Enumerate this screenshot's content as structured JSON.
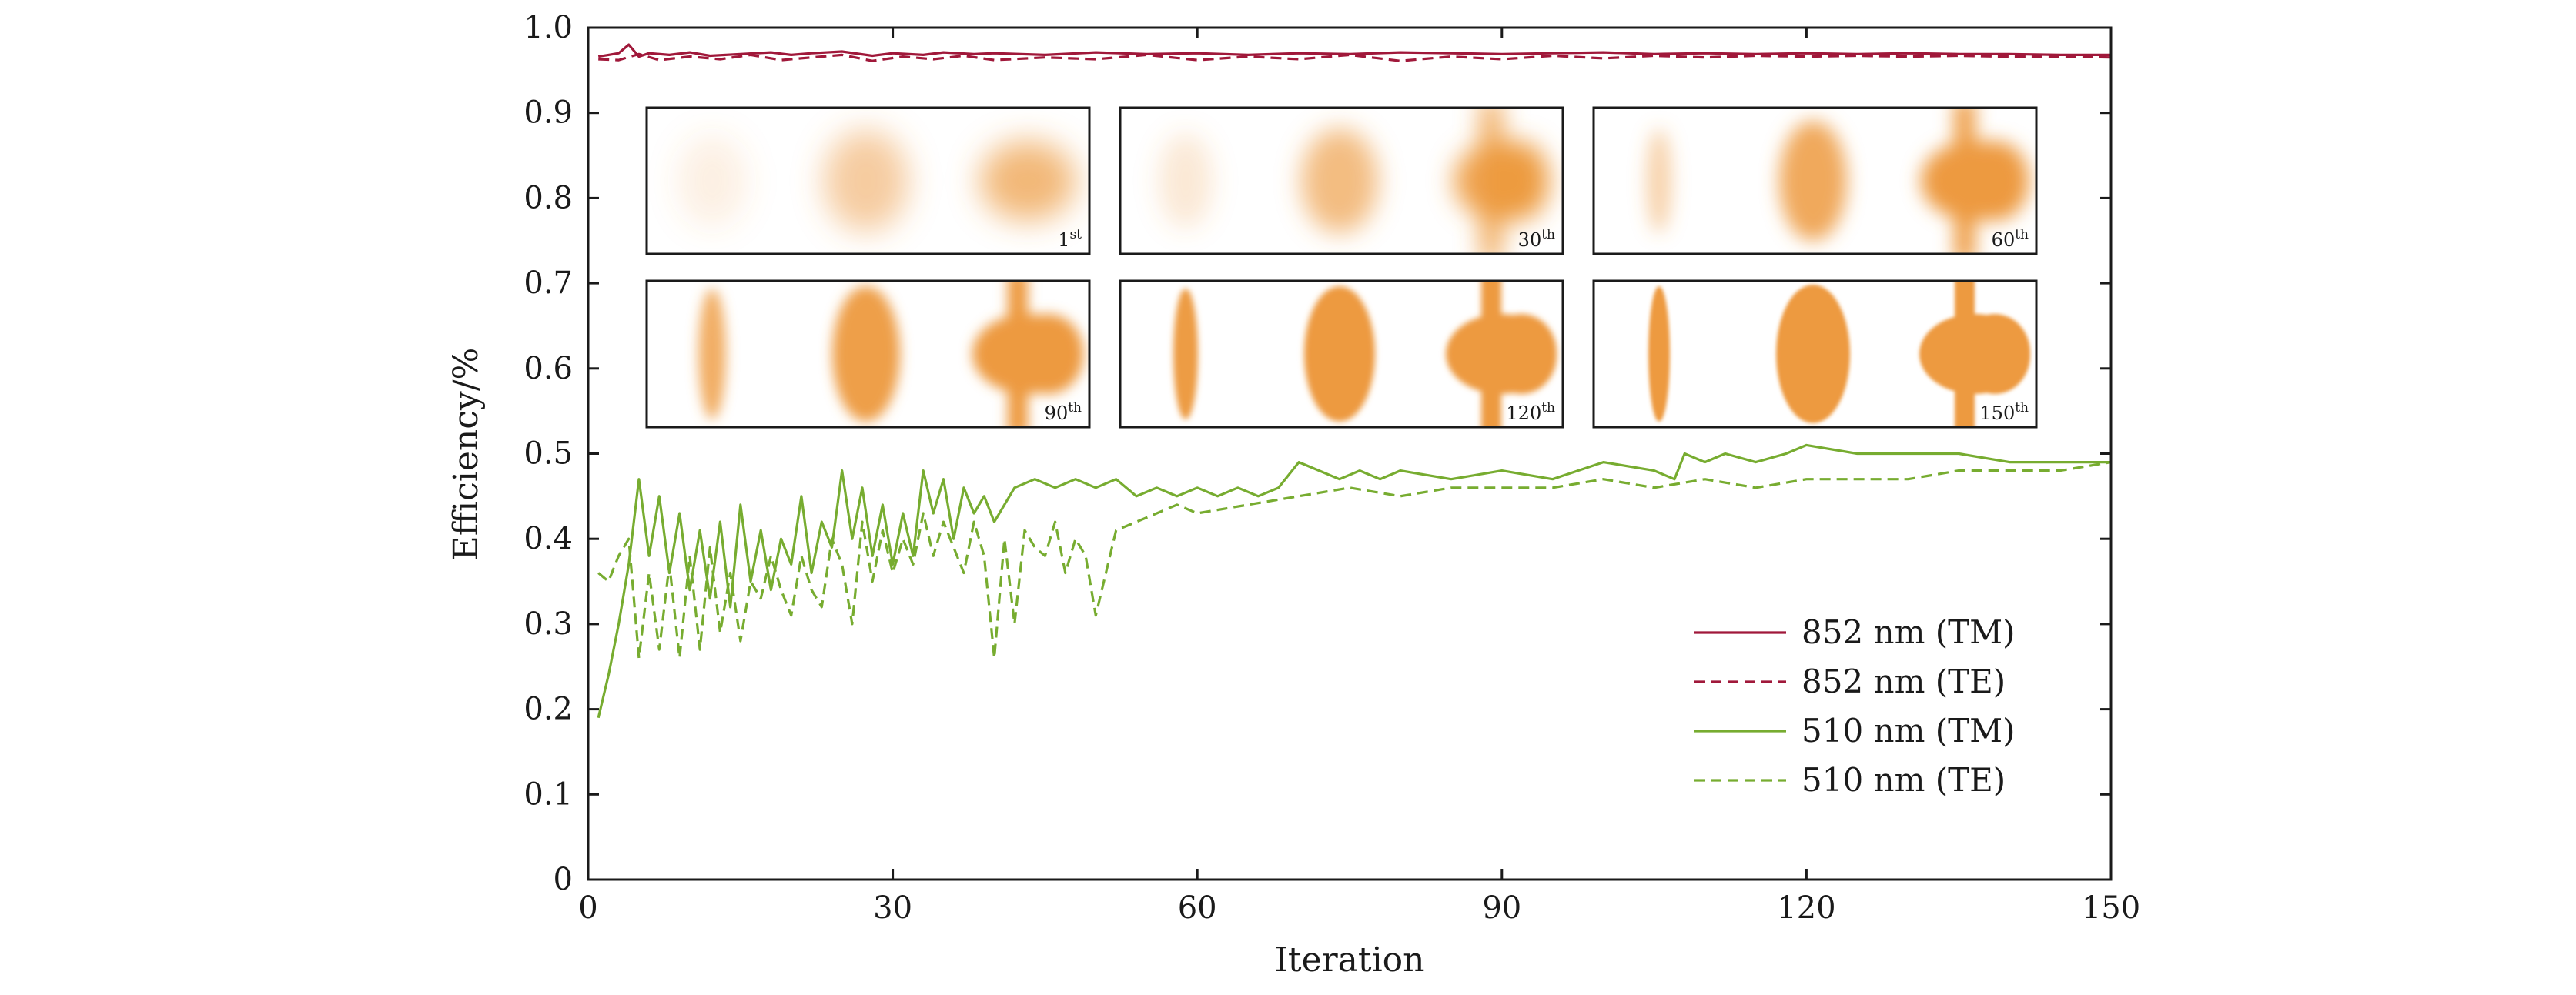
{
  "chart_data": {
    "type": "line",
    "xlabel": "Iteration",
    "ylabel": "Efficiency/%",
    "xlim": [
      0,
      150
    ],
    "ylim": [
      0,
      1.0
    ],
    "xticks": [
      0,
      30,
      60,
      90,
      120,
      150
    ],
    "yticks": [
      0,
      0.1,
      0.2,
      0.3,
      0.4,
      0.5,
      0.6,
      0.7,
      0.8,
      0.9,
      1.0
    ],
    "xtick_labels": [
      "0",
      "30",
      "60",
      "90",
      "120",
      "150"
    ],
    "ytick_labels": [
      "0",
      "0.1",
      "0.2",
      "0.3",
      "0.4",
      "0.5",
      "0.6",
      "0.7",
      "0.8",
      "0.9",
      "1.0"
    ],
    "grid": false,
    "legend_position": "lower-right",
    "series": [
      {
        "name": "852 nm (TM)",
        "color": "#a0183a",
        "dash": "solid",
        "x": [
          1,
          2,
          3,
          4,
          5,
          6,
          8,
          10,
          12,
          15,
          18,
          20,
          22,
          25,
          28,
          30,
          33,
          35,
          38,
          40,
          45,
          50,
          55,
          60,
          65,
          70,
          75,
          80,
          85,
          90,
          95,
          100,
          105,
          110,
          115,
          120,
          125,
          130,
          135,
          140,
          145,
          150
        ],
        "values": [
          0.966,
          0.968,
          0.97,
          0.98,
          0.966,
          0.97,
          0.968,
          0.971,
          0.967,
          0.969,
          0.971,
          0.968,
          0.97,
          0.972,
          0.967,
          0.97,
          0.968,
          0.971,
          0.969,
          0.97,
          0.968,
          0.971,
          0.969,
          0.97,
          0.968,
          0.97,
          0.969,
          0.971,
          0.97,
          0.969,
          0.97,
          0.971,
          0.969,
          0.97,
          0.969,
          0.97,
          0.969,
          0.97,
          0.969,
          0.969,
          0.968,
          0.968
        ]
      },
      {
        "name": "852 nm (TE)",
        "color": "#a0183a",
        "dash": "dashed",
        "x": [
          1,
          3,
          5,
          7,
          10,
          13,
          16,
          19,
          22,
          25,
          28,
          31,
          34,
          37,
          40,
          45,
          50,
          55,
          60,
          65,
          70,
          75,
          80,
          85,
          90,
          95,
          100,
          105,
          110,
          115,
          120,
          125,
          130,
          135,
          140,
          145,
          150
        ],
        "values": [
          0.963,
          0.962,
          0.969,
          0.962,
          0.966,
          0.963,
          0.968,
          0.962,
          0.965,
          0.968,
          0.961,
          0.966,
          0.963,
          0.967,
          0.962,
          0.965,
          0.963,
          0.968,
          0.962,
          0.966,
          0.963,
          0.968,
          0.961,
          0.966,
          0.963,
          0.967,
          0.964,
          0.967,
          0.965,
          0.967,
          0.966,
          0.967,
          0.966,
          0.967,
          0.966,
          0.966,
          0.965
        ]
      },
      {
        "name": "510 nm (TM)",
        "color": "#77ac30",
        "dash": "solid",
        "x": [
          1,
          2,
          3,
          4,
          5,
          6,
          7,
          8,
          9,
          10,
          11,
          12,
          13,
          14,
          15,
          16,
          17,
          18,
          19,
          20,
          21,
          22,
          23,
          24,
          25,
          26,
          27,
          28,
          29,
          30,
          31,
          32,
          33,
          34,
          35,
          36,
          37,
          38,
          39,
          40,
          42,
          44,
          46,
          48,
          50,
          52,
          54,
          56,
          58,
          60,
          62,
          64,
          66,
          68,
          70,
          72,
          74,
          76,
          78,
          80,
          85,
          90,
          95,
          100,
          105,
          107,
          108,
          110,
          112,
          115,
          118,
          120,
          125,
          130,
          135,
          140,
          145,
          150
        ],
        "values": [
          0.19,
          0.24,
          0.3,
          0.37,
          0.47,
          0.38,
          0.45,
          0.36,
          0.43,
          0.34,
          0.41,
          0.33,
          0.42,
          0.32,
          0.44,
          0.35,
          0.41,
          0.34,
          0.4,
          0.37,
          0.45,
          0.36,
          0.42,
          0.39,
          0.48,
          0.4,
          0.46,
          0.38,
          0.44,
          0.37,
          0.43,
          0.38,
          0.48,
          0.43,
          0.47,
          0.4,
          0.46,
          0.43,
          0.45,
          0.42,
          0.46,
          0.47,
          0.46,
          0.47,
          0.46,
          0.47,
          0.45,
          0.46,
          0.45,
          0.46,
          0.45,
          0.46,
          0.45,
          0.46,
          0.49,
          0.48,
          0.47,
          0.48,
          0.47,
          0.48,
          0.47,
          0.48,
          0.47,
          0.49,
          0.48,
          0.47,
          0.5,
          0.49,
          0.5,
          0.49,
          0.5,
          0.51,
          0.5,
          0.5,
          0.5,
          0.49,
          0.49,
          0.49
        ]
      },
      {
        "name": "510 nm (TE)",
        "color": "#77ac30",
        "dash": "dashed",
        "x": [
          1,
          2,
          3,
          4,
          5,
          6,
          7,
          8,
          9,
          10,
          11,
          12,
          13,
          14,
          15,
          16,
          17,
          18,
          19,
          20,
          21,
          22,
          23,
          24,
          25,
          26,
          27,
          28,
          29,
          30,
          31,
          32,
          33,
          34,
          35,
          36,
          37,
          38,
          39,
          40,
          41,
          42,
          43,
          44,
          45,
          46,
          47,
          48,
          49,
          50,
          52,
          54,
          56,
          58,
          60,
          65,
          70,
          75,
          80,
          85,
          90,
          95,
          100,
          105,
          110,
          115,
          120,
          125,
          130,
          135,
          140,
          145,
          150
        ],
        "values": [
          0.36,
          0.35,
          0.38,
          0.4,
          0.26,
          0.36,
          0.27,
          0.37,
          0.26,
          0.38,
          0.27,
          0.39,
          0.29,
          0.36,
          0.28,
          0.35,
          0.33,
          0.38,
          0.34,
          0.31,
          0.38,
          0.34,
          0.32,
          0.4,
          0.37,
          0.3,
          0.42,
          0.35,
          0.41,
          0.36,
          0.4,
          0.37,
          0.43,
          0.38,
          0.42,
          0.39,
          0.36,
          0.42,
          0.38,
          0.26,
          0.4,
          0.3,
          0.41,
          0.39,
          0.38,
          0.42,
          0.36,
          0.4,
          0.38,
          0.31,
          0.41,
          0.42,
          0.43,
          0.44,
          0.43,
          0.44,
          0.45,
          0.46,
          0.45,
          0.46,
          0.46,
          0.46,
          0.47,
          0.46,
          0.47,
          0.46,
          0.47,
          0.47,
          0.47,
          0.48,
          0.48,
          0.48,
          0.49
        ]
      }
    ],
    "insets": [
      {
        "number": "1",
        "suffix": "st"
      },
      {
        "number": "30",
        "suffix": "th"
      },
      {
        "number": "60",
        "suffix": "th"
      },
      {
        "number": "90",
        "suffix": "th"
      },
      {
        "number": "120",
        "suffix": "th"
      },
      {
        "number": "150",
        "suffix": "th"
      }
    ],
    "inset_color": "#ed9a3f"
  }
}
